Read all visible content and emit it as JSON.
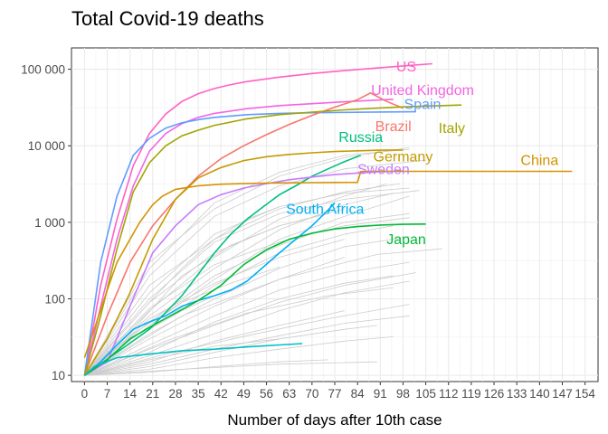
{
  "chart_data": {
    "type": "line",
    "title": "Total Covid-19 deaths",
    "xlabel": "Number of days after 10th case",
    "ylabel": "",
    "y_scale": "log10",
    "xlim": [
      -4,
      158
    ],
    "ylim": [
      8.3,
      190000
    ],
    "x_ticks": [
      0,
      7,
      14,
      21,
      28,
      35,
      42,
      49,
      56,
      63,
      70,
      77,
      84,
      91,
      98,
      105,
      112,
      119,
      126,
      133,
      140,
      147,
      154
    ],
    "x_tick_labels": [
      "0",
      "7",
      "14",
      "21",
      "28",
      "35",
      "42",
      "49",
      "56",
      "63",
      "70",
      "77",
      "84",
      "91",
      "98",
      "105",
      "112",
      "119",
      "126",
      "133",
      "140",
      "147",
      "154"
    ],
    "y_ticks": [
      10,
      100,
      1000,
      10000,
      100000
    ],
    "y_tick_labels": [
      "10",
      "100",
      "1 000",
      "10 000",
      "100 000"
    ],
    "grid": true,
    "background_series_color": "#cccccc",
    "series": [
      {
        "name": "US",
        "color": "#ff61c3",
        "x": [
          0,
          5,
          10,
          15,
          20,
          25,
          30,
          35,
          40,
          45,
          50,
          60,
          70,
          80,
          90,
          100,
          107
        ],
        "y": [
          10,
          150,
          1100,
          5500,
          14500,
          26000,
          38000,
          48000,
          56000,
          63000,
          69000,
          79000,
          88000,
          96000,
          104000,
          112000,
          118000
        ],
        "label_x": 99,
        "label_y": 105000
      },
      {
        "name": "United Kingdom",
        "color": "#f564e3",
        "x": [
          0,
          5,
          10,
          15,
          20,
          25,
          30,
          35,
          40,
          50,
          60,
          70,
          80,
          90,
          95
        ],
        "y": [
          10,
          80,
          600,
          3000,
          8500,
          14500,
          19500,
          23500,
          26500,
          30500,
          33500,
          35500,
          37500,
          39500,
          40500
        ],
        "label_x": 104,
        "label_y": 52000
      },
      {
        "name": "Spain",
        "color": "#619cff",
        "x": [
          0,
          5,
          10,
          15,
          20,
          25,
          30,
          35,
          40,
          50,
          60,
          70,
          80,
          90,
          102
        ],
        "y": [
          10,
          300,
          2200,
          7500,
          12500,
          17000,
          20000,
          22000,
          23500,
          25500,
          26500,
          27000,
          27300,
          27600,
          27800
        ],
        "label_x": 104,
        "label_y": 34000
      },
      {
        "name": "Brazil",
        "color": "#f8766d",
        "x": [
          0,
          7,
          14,
          21,
          28,
          35,
          42,
          49,
          56,
          63,
          70,
          77,
          84,
          88,
          93,
          98
        ],
        "y": [
          10,
          60,
          300,
          900,
          2000,
          4000,
          6800,
          10000,
          14000,
          19000,
          25000,
          32000,
          40000,
          49000,
          38000,
          31000
        ],
        "label_x": 95,
        "label_y": 17500
      },
      {
        "name": "Italy",
        "color": "#a3a500",
        "x": [
          0,
          5,
          10,
          15,
          20,
          25,
          30,
          35,
          40,
          50,
          60,
          70,
          80,
          90,
          100,
          110,
          116
        ],
        "y": [
          10,
          60,
          450,
          2500,
          6000,
          10000,
          13500,
          16000,
          18500,
          22500,
          25500,
          27500,
          29500,
          31000,
          32500,
          33500,
          34000
        ],
        "label_x": 113,
        "label_y": 16500
      },
      {
        "name": "Russia",
        "color": "#00bf7d",
        "x": [
          0,
          10,
          20,
          30,
          40,
          45,
          50,
          55,
          60,
          65,
          70,
          75,
          80,
          85
        ],
        "y": [
          10,
          20,
          40,
          110,
          400,
          700,
          1100,
          1600,
          2300,
          3000,
          4000,
          5000,
          6200,
          7500
        ],
        "label_x": 85,
        "label_y": 12500
      },
      {
        "name": "Germany",
        "color": "#c49a00",
        "x": [
          0,
          7,
          14,
          21,
          28,
          35,
          42,
          49,
          56,
          63,
          70,
          77,
          84,
          91,
          98
        ],
        "y": [
          10,
          30,
          120,
          600,
          2000,
          3800,
          5200,
          6400,
          7200,
          7700,
          8100,
          8400,
          8600,
          8750,
          8800
        ],
        "label_x": 98,
        "label_y": 7000
      },
      {
        "name": "Sweden",
        "color": "#c77cff",
        "x": [
          0,
          7,
          14,
          21,
          28,
          35,
          42,
          49,
          56,
          63,
          70,
          77,
          84,
          91,
          98
        ],
        "y": [
          10,
          15,
          80,
          400,
          900,
          1700,
          2300,
          2800,
          3200,
          3600,
          3900,
          4200,
          4400,
          4600,
          4700
        ],
        "label_x": 92,
        "label_y": 4800
      },
      {
        "name": "China",
        "color": "#d39200",
        "x": [
          0,
          3,
          7,
          10,
          14,
          17,
          21,
          24,
          28,
          35,
          42,
          49,
          56,
          63,
          70,
          77,
          84,
          85,
          86,
          105,
          125,
          150
        ],
        "y": [
          17,
          40,
          130,
          300,
          600,
          1000,
          1700,
          2200,
          2700,
          3000,
          3150,
          3200,
          3250,
          3280,
          3300,
          3320,
          3330,
          4600,
          4630,
          4634,
          4634,
          4634
        ],
        "label_x": 140,
        "label_y": 6300
      },
      {
        "name": "South Africa",
        "color": "#00b0f6",
        "x": [
          0,
          5,
          10,
          15,
          20,
          25,
          30,
          35,
          40,
          45,
          50,
          55,
          60,
          65,
          70,
          75,
          77
        ],
        "y": [
          10,
          15,
          25,
          40,
          50,
          60,
          80,
          95,
          110,
          130,
          170,
          260,
          400,
          600,
          900,
          1450,
          1800
        ],
        "label_x": 74,
        "label_y": 1450
      },
      {
        "name": "Japan",
        "color": "#00ba38",
        "x": [
          0,
          7,
          14,
          21,
          28,
          35,
          42,
          49,
          56,
          63,
          70,
          77,
          84,
          91,
          98,
          105
        ],
        "y": [
          10,
          16,
          30,
          45,
          65,
          95,
          150,
          280,
          440,
          600,
          720,
          820,
          880,
          920,
          940,
          950
        ],
        "label_x": 99,
        "label_y": 580
      },
      {
        "name": "",
        "color": "#00bfc4",
        "x": [
          0,
          3,
          10,
          20,
          30,
          40,
          50,
          60,
          67
        ],
        "y": [
          10,
          13,
          17,
          19,
          21,
          22,
          23.5,
          25,
          26
        ],
        "label_x": null,
        "label_y": null
      }
    ],
    "background_series": [
      {
        "x": [
          0,
          20,
          40,
          60,
          80,
          100
        ],
        "y": [
          10,
          300,
          1500,
          4000,
          7000,
          9500
        ]
      },
      {
        "x": [
          0,
          20,
          40,
          60,
          80,
          105
        ],
        "y": [
          10,
          200,
          1200,
          3000,
          5000,
          6500
        ]
      },
      {
        "x": [
          0,
          20,
          40,
          60,
          80,
          100
        ],
        "y": [
          10,
          250,
          1800,
          4500,
          7500,
          9000
        ]
      },
      {
        "x": [
          0,
          20,
          40,
          60,
          80,
          97
        ],
        "y": [
          10,
          150,
          600,
          1500,
          2500,
          3200
        ]
      },
      {
        "x": [
          0,
          20,
          40,
          60,
          80,
          100
        ],
        "y": [
          10,
          120,
          700,
          1600,
          2400,
          2800
        ]
      },
      {
        "x": [
          0,
          20,
          40,
          60,
          80
        ],
        "y": [
          10,
          90,
          400,
          900,
          1500
        ]
      },
      {
        "x": [
          0,
          20,
          40,
          60,
          80,
          95
        ],
        "y": [
          10,
          60,
          250,
          800,
          1700,
          2400
        ]
      },
      {
        "x": [
          0,
          20,
          40,
          60,
          80,
          100
        ],
        "y": [
          10,
          50,
          200,
          500,
          1000,
          1300
        ]
      },
      {
        "x": [
          0,
          20,
          40,
          60,
          80,
          95
        ],
        "y": [
          10,
          40,
          150,
          400,
          700,
          900
        ]
      },
      {
        "x": [
          0,
          20,
          40,
          60,
          80,
          100
        ],
        "y": [
          10,
          35,
          100,
          250,
          480,
          650
        ]
      },
      {
        "x": [
          0,
          20,
          40,
          60,
          80
        ],
        "y": [
          10,
          30,
          80,
          180,
          350
        ]
      },
      {
        "x": [
          0,
          20,
          40,
          60,
          80,
          100
        ],
        "y": [
          10,
          25,
          60,
          130,
          220,
          300
        ]
      },
      {
        "x": [
          0,
          20,
          40,
          60,
          80,
          95
        ],
        "y": [
          10,
          20,
          50,
          100,
          160,
          200
        ]
      },
      {
        "x": [
          0,
          20,
          40,
          60,
          80,
          100
        ],
        "y": [
          10,
          18,
          35,
          70,
          120,
          170
        ]
      },
      {
        "x": [
          0,
          20,
          40,
          60,
          80
        ],
        "y": [
          10,
          15,
          28,
          45,
          70
        ]
      },
      {
        "x": [
          0,
          20,
          40,
          60,
          80,
          100
        ],
        "y": [
          10,
          14,
          22,
          33,
          48,
          60
        ]
      },
      {
        "x": [
          0,
          20,
          40,
          60,
          80,
          95
        ],
        "y": [
          10,
          12,
          17,
          22,
          28,
          32
        ]
      },
      {
        "x": [
          0,
          20,
          40,
          60,
          80,
          90
        ],
        "y": [
          10,
          13,
          20,
          30,
          40,
          45
        ]
      },
      {
        "x": [
          0,
          20,
          40,
          60,
          75
        ],
        "y": [
          10,
          11,
          13,
          15,
          16
        ]
      },
      {
        "x": [
          0,
          20,
          40,
          60,
          80,
          100
        ],
        "y": [
          10,
          45,
          180,
          600,
          1200,
          2200
        ]
      },
      {
        "x": [
          0,
          20,
          40,
          60,
          80,
          93
        ],
        "y": [
          10,
          70,
          350,
          1100,
          2200,
          3200
        ]
      },
      {
        "x": [
          0,
          15,
          30,
          45,
          60,
          75
        ],
        "y": [
          10,
          40,
          200,
          500,
          900,
          1300
        ]
      },
      {
        "x": [
          0,
          20,
          40,
          60,
          80,
          102
        ],
        "y": [
          10,
          22,
          45,
          90,
          150,
          220
        ]
      },
      {
        "x": [
          0,
          20,
          40,
          60,
          80
        ],
        "y": [
          10,
          55,
          160,
          350,
          600
        ]
      },
      {
        "x": [
          0,
          15,
          30,
          45,
          60
        ],
        "y": [
          10,
          35,
          90,
          160,
          260
        ]
      },
      {
        "x": [
          0,
          20,
          40,
          60
        ],
        "y": [
          10,
          16,
          24,
          30
        ]
      },
      {
        "x": [
          0,
          10,
          20,
          30,
          40,
          50,
          60
        ],
        "y": [
          10,
          30,
          90,
          250,
          600,
          1100,
          1600
        ]
      },
      {
        "x": [
          0,
          20,
          40,
          60,
          80,
          100
        ],
        "y": [
          10,
          75,
          280,
          550,
          900,
          1150
        ]
      },
      {
        "x": [
          0,
          25,
          50,
          75,
          100
        ],
        "y": [
          10,
          19,
          33,
          55,
          85
        ]
      },
      {
        "x": [
          0,
          25,
          50,
          75,
          95
        ],
        "y": [
          10,
          28,
          65,
          110,
          140
        ]
      },
      {
        "x": [
          0,
          20,
          40,
          60,
          80,
          103
        ],
        "y": [
          10,
          100,
          550,
          1300,
          2000,
          2600
        ]
      },
      {
        "x": [
          0,
          10,
          20,
          30,
          40,
          50
        ],
        "y": [
          10,
          20,
          40,
          70,
          110,
          160
        ]
      },
      {
        "x": [
          0,
          30,
          60,
          90
        ],
        "y": [
          10,
          12,
          14,
          15
        ]
      },
      {
        "x": [
          0,
          30,
          60,
          90,
          110
        ],
        "y": [
          10,
          60,
          180,
          380,
          450
        ]
      }
    ]
  }
}
